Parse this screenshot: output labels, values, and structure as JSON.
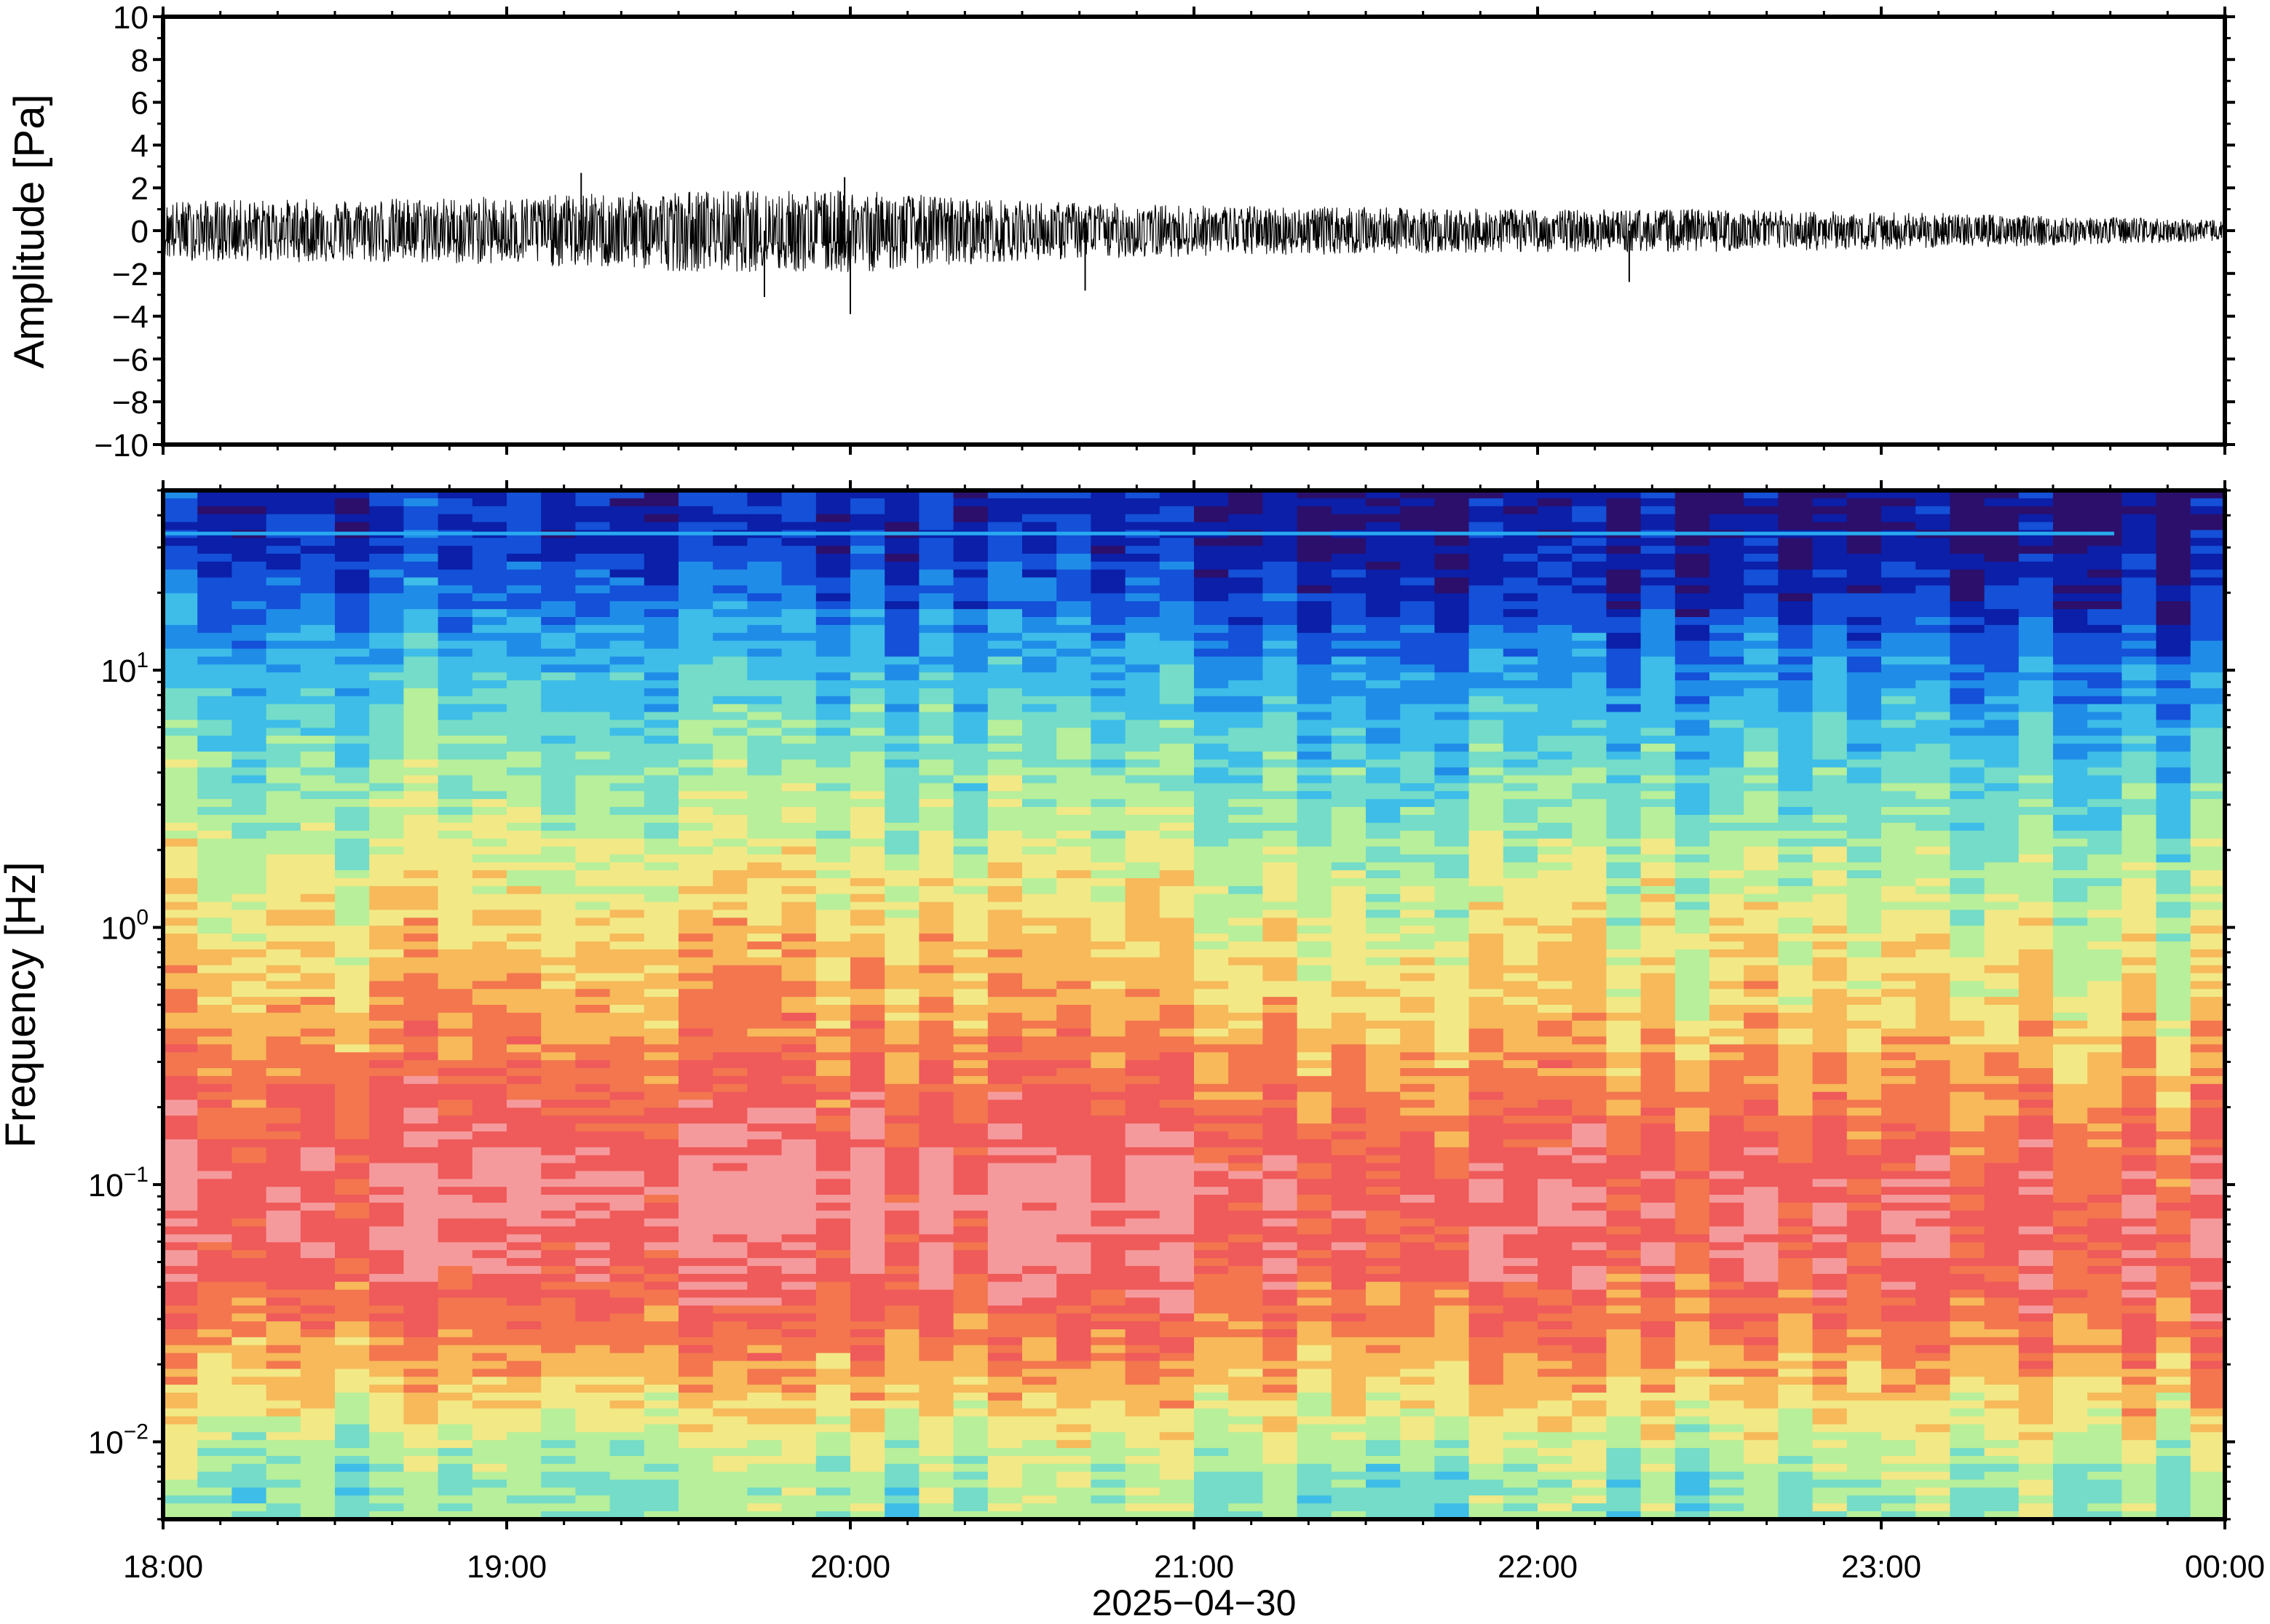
{
  "chart_data": [
    {
      "type": "line",
      "panel": "waveform",
      "ylabel": "Amplitude [Pa]",
      "ylim": [
        -10,
        10
      ],
      "yticks": [
        -10,
        -8,
        -6,
        -4,
        -2,
        0,
        2,
        4,
        6,
        8,
        10
      ],
      "ytick_labels": [
        "−10",
        "−8",
        "−6",
        "−4",
        "−2",
        "0",
        "2",
        "4",
        "6",
        "8",
        "10"
      ],
      "x_range": [
        "18:00",
        "00:00"
      ],
      "series": [
        {
          "x": [
            "18:00",
            "18:30",
            "19:00",
            "19:30",
            "20:00",
            "20:30",
            "21:00",
            "21:30",
            "22:00",
            "22:30",
            "23:00",
            "23:30",
            "00:00"
          ],
          "envelope_max": [
            1.4,
            1.5,
            1.6,
            1.9,
            1.9,
            1.4,
            1.2,
            1.1,
            1.0,
            1.0,
            0.9,
            0.7,
            0.5
          ],
          "envelope_min": [
            -1.4,
            -1.5,
            -1.6,
            -1.9,
            -2.0,
            -1.4,
            -1.2,
            -1.1,
            -1.0,
            -1.0,
            -0.9,
            -0.7,
            -0.5
          ],
          "peaks": [
            {
              "x": "19:13",
              "y": 2.7
            },
            {
              "x": "19:45",
              "y": -3.1
            },
            {
              "x": "19:59",
              "y": 2.5
            },
            {
              "x": "20:00",
              "y": -3.9
            },
            {
              "x": "20:41",
              "y": -2.8
            },
            {
              "x": "22:16",
              "y": -2.4
            }
          ]
        }
      ]
    },
    {
      "type": "heatmap",
      "panel": "spectrogram",
      "ylabel": "Frequency [Hz]",
      "yscale": "log",
      "ylim": [
        0.005,
        50
      ],
      "yticks": [
        {
          "value": 0.01,
          "base": "10",
          "exp": "−2"
        },
        {
          "value": 0.1,
          "base": "10",
          "exp": "−1"
        },
        {
          "value": 1,
          "base": "10",
          "exp": "0"
        },
        {
          "value": 10,
          "base": "10",
          "exp": "1"
        }
      ],
      "colormap": [
        "#2c0f6b",
        "#0b1fa8",
        "#1450d8",
        "#1f8de8",
        "#3dbde8",
        "#74dcc8",
        "#b8ef9a",
        "#f2e886",
        "#f7b95a",
        "#f3764e",
        "#ef5a5a",
        "#f59a9c"
      ],
      "frequencies_hz": [
        0.007,
        0.01,
        0.02,
        0.05,
        0.1,
        0.2,
        0.5,
        1,
        2,
        5,
        10,
        20,
        35
      ],
      "times": [
        "18:00",
        "19:00",
        "20:00",
        "21:00",
        "22:00",
        "23:00",
        "00:00"
      ],
      "level_index": [
        [
          5.6,
          6.3,
          8.2,
          10.3,
          10.5,
          9.6,
          8.1,
          7.3,
          6.4,
          5.2,
          4.0,
          2.4,
          1.4
        ],
        [
          5.6,
          6.3,
          8.3,
          10.3,
          10.7,
          9.8,
          8.3,
          7.5,
          6.5,
          5.3,
          4.2,
          2.5,
          1.3
        ],
        [
          5.8,
          6.5,
          8.5,
          10.5,
          10.9,
          9.8,
          8.4,
          7.6,
          6.6,
          5.3,
          4.1,
          2.3,
          1.2
        ],
        [
          5.6,
          6.4,
          8.4,
          10.2,
          10.6,
          9.4,
          7.9,
          7.1,
          6.1,
          4.8,
          3.5,
          1.8,
          0.9
        ],
        [
          5.5,
          6.3,
          8.3,
          10.1,
          10.2,
          9.0,
          7.6,
          6.9,
          5.8,
          4.4,
          3.1,
          1.4,
          0.6
        ],
        [
          5.5,
          6.3,
          8.3,
          10.0,
          10.1,
          8.8,
          7.4,
          6.8,
          5.8,
          4.5,
          3.2,
          1.3,
          0.4
        ],
        [
          5.6,
          6.6,
          8.6,
          10.1,
          9.8,
          8.6,
          7.2,
          6.5,
          5.3,
          4.0,
          2.7,
          1.0,
          0.2
        ]
      ],
      "line_feature_hz": 34
    }
  ],
  "x_axis": {
    "ticks": [
      "18:00",
      "19:00",
      "20:00",
      "21:00",
      "22:00",
      "23:00",
      "00:00"
    ],
    "date_label": "2025−04−30"
  }
}
